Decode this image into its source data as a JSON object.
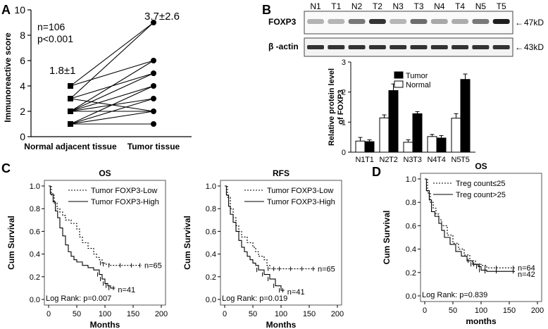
{
  "panels": {
    "a": "A",
    "b": "B",
    "c": "C",
    "d": "D"
  },
  "chart_data": [
    {
      "id": "A",
      "type": "scatter",
      "title": "",
      "xlabel": "",
      "ylabel": "Immunoreactive score",
      "ylim": [
        0,
        10
      ],
      "yticks": [
        "0",
        "2",
        "4",
        "6",
        "8",
        "10"
      ],
      "categories": [
        "Normal adjacent tissue",
        "Tumor tissue"
      ],
      "annotation_n": "n=106",
      "annotation_p": "p<0.001",
      "normal_label": "1.8±1",
      "tumor_label": "3.7±2.6",
      "pairs": [
        [
          4,
          9
        ],
        [
          4,
          6
        ],
        [
          3,
          9
        ],
        [
          3,
          5
        ],
        [
          2,
          6
        ],
        [
          2,
          4
        ],
        [
          2,
          3
        ],
        [
          2,
          2
        ],
        [
          1,
          4
        ],
        [
          1,
          3
        ],
        [
          1,
          2
        ],
        [
          1,
          1
        ],
        [
          3,
          2
        ],
        [
          2,
          5
        ]
      ]
    },
    {
      "id": "B",
      "type": "bar",
      "blot_lanes": [
        "N1",
        "T1",
        "N2",
        "T2",
        "N3",
        "T3",
        "N4",
        "T4",
        "N5",
        "T5"
      ],
      "blot_rows": [
        "FOXP3",
        "β -actin"
      ],
      "blot_sizes": [
        "47kD",
        "43kD"
      ],
      "ylabel_line1": "Relative protein level",
      "ylabel_line2": "of FOXP3",
      "ylim": [
        0,
        3
      ],
      "yticks": [
        "0",
        "1",
        "2",
        "3"
      ],
      "categories": [
        "N1",
        "T1",
        "N2",
        "T2",
        "N3",
        "T3",
        "N4",
        "T4",
        "N5",
        "T5"
      ],
      "values": [
        0.37,
        0.35,
        1.14,
        2.05,
        0.33,
        1.28,
        0.52,
        0.47,
        1.13,
        2.42
      ],
      "errors": [
        0.12,
        0.06,
        0.1,
        0.22,
        0.08,
        0.07,
        0.07,
        0.08,
        0.15,
        0.18
      ],
      "colors": [
        "#ffffff",
        "#000000",
        "#ffffff",
        "#000000",
        "#ffffff",
        "#000000",
        "#ffffff",
        "#000000",
        "#ffffff",
        "#000000"
      ],
      "legend": [
        {
          "name": "Tumor",
          "color": "#000000"
        },
        {
          "name": "Normal",
          "color": "#ffffff"
        }
      ]
    },
    {
      "id": "C-OS",
      "type": "line",
      "title": "OS",
      "xlabel": "Months",
      "ylabel": "Cum Survival",
      "xlim": [
        0,
        200
      ],
      "ylim": [
        0,
        1
      ],
      "xticks": [
        "0",
        "50",
        "100",
        "150",
        "200"
      ],
      "yticks": [
        "0.0",
        "0.2",
        "0.4",
        "0.6",
        "0.8",
        "1.0"
      ],
      "legend": [
        "Tumor FOXP3-Low",
        "Tumor FOXP3-High"
      ],
      "n_low": "n=65",
      "n_high": "n=41",
      "logrank": "Log Rank: p=0.007",
      "series": [
        {
          "name": "Tumor FOXP3-Low",
          "style": "dotted",
          "x": [
            0,
            5,
            10,
            15,
            20,
            25,
            30,
            40,
            50,
            55,
            60,
            70,
            80,
            85,
            90,
            95,
            100,
            110,
            130,
            150,
            165
          ],
          "y": [
            1.0,
            0.92,
            0.85,
            0.8,
            0.77,
            0.74,
            0.7,
            0.67,
            0.62,
            0.55,
            0.5,
            0.45,
            0.4,
            0.37,
            0.35,
            0.32,
            0.31,
            0.3,
            0.3,
            0.3,
            0.3
          ]
        },
        {
          "name": "Tumor FOXP3-High",
          "style": "solid",
          "x": [
            0,
            3,
            8,
            12,
            16,
            20,
            25,
            30,
            35,
            40,
            45,
            50,
            60,
            70,
            80,
            90,
            95,
            100,
            105,
            110,
            118
          ],
          "y": [
            1.0,
            0.93,
            0.86,
            0.78,
            0.72,
            0.63,
            0.56,
            0.48,
            0.42,
            0.38,
            0.35,
            0.33,
            0.3,
            0.28,
            0.26,
            0.22,
            0.18,
            0.14,
            0.12,
            0.1,
            0.1
          ]
        }
      ]
    },
    {
      "id": "C-RFS",
      "type": "line",
      "title": "RFS",
      "xlabel": "Months",
      "ylabel": "Cum Survival",
      "xlim": [
        0,
        200
      ],
      "ylim": [
        0,
        1
      ],
      "xticks": [
        "0",
        "50",
        "100",
        "150",
        "200"
      ],
      "yticks": [
        "0.0",
        "0.2",
        "0.4",
        "0.6",
        "0.8",
        "1.0"
      ],
      "legend": [
        "Tumor FOXP3-Low",
        "Tumor FOXP3-High"
      ],
      "n_low": "n=65",
      "n_high": "n=41",
      "logrank": "Log Rank: p=0.019",
      "series": [
        {
          "name": "Tumor FOXP3-Low",
          "style": "dotted",
          "x": [
            0,
            5,
            10,
            15,
            20,
            25,
            30,
            40,
            50,
            55,
            60,
            70,
            75,
            80,
            90,
            100,
            120,
            140,
            160
          ],
          "y": [
            1.0,
            0.9,
            0.8,
            0.72,
            0.65,
            0.6,
            0.55,
            0.5,
            0.46,
            0.42,
            0.38,
            0.35,
            0.3,
            0.27,
            0.27,
            0.27,
            0.27,
            0.27,
            0.27
          ]
        },
        {
          "name": "Tumor FOXP3-High",
          "style": "solid",
          "x": [
            0,
            3,
            7,
            10,
            15,
            20,
            25,
            30,
            35,
            40,
            45,
            50,
            55,
            60,
            70,
            80,
            90,
            100,
            106
          ],
          "y": [
            1.0,
            0.92,
            0.82,
            0.75,
            0.68,
            0.6,
            0.52,
            0.46,
            0.42,
            0.38,
            0.35,
            0.32,
            0.3,
            0.26,
            0.22,
            0.18,
            0.12,
            0.08,
            0.08
          ]
        }
      ]
    },
    {
      "id": "D",
      "type": "line",
      "title": "OS",
      "xlabel": "months",
      "ylabel": "Cum Survival",
      "xlim": [
        0,
        200
      ],
      "ylim": [
        0,
        1
      ],
      "xticks": [
        "0",
        "50",
        "100",
        "150",
        "200"
      ],
      "yticks": [
        "0.0",
        "0.2",
        "0.4",
        "0.6",
        "0.8",
        "1.0"
      ],
      "legend": [
        "Treg count≤25",
        "Treg count>25"
      ],
      "n_low": "n=64",
      "n_high": "n=42",
      "logrank": "Log Rank: p=0.839",
      "series": [
        {
          "name": "Treg count≤25",
          "style": "dotted",
          "x": [
            0,
            5,
            10,
            15,
            20,
            25,
            30,
            40,
            50,
            60,
            70,
            80,
            90,
            100,
            110,
            130,
            160
          ],
          "y": [
            1.0,
            0.88,
            0.8,
            0.75,
            0.7,
            0.65,
            0.6,
            0.52,
            0.45,
            0.4,
            0.35,
            0.3,
            0.27,
            0.26,
            0.24,
            0.24,
            0.24
          ]
        },
        {
          "name": "Treg count>25",
          "style": "solid",
          "x": [
            0,
            3,
            8,
            12,
            18,
            25,
            30,
            35,
            45,
            55,
            65,
            75,
            85,
            95,
            100,
            110,
            130,
            160
          ],
          "y": [
            1.0,
            0.9,
            0.82,
            0.72,
            0.68,
            0.62,
            0.56,
            0.5,
            0.44,
            0.38,
            0.34,
            0.3,
            0.27,
            0.25,
            0.22,
            0.21,
            0.21,
            0.21
          ]
        }
      ]
    }
  ]
}
